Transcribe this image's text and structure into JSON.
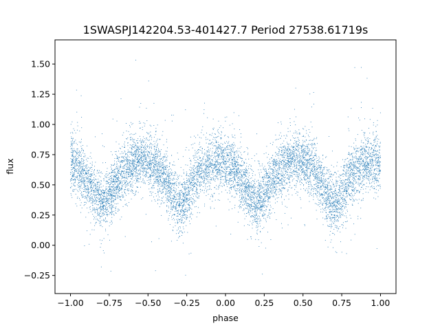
{
  "chart_data": {
    "type": "scatter",
    "title": "1SWASPJ142204.53-401427.7 Period 27538.61719s",
    "xlabel": "phase",
    "ylabel": "flux",
    "xlim": [
      -1.1,
      1.1
    ],
    "ylim": [
      -0.4,
      1.7
    ],
    "xticks": [
      -1.0,
      -0.75,
      -0.5,
      -0.25,
      0.0,
      0.25,
      0.5,
      0.75,
      1.0
    ],
    "xtick_labels": [
      "−1.00",
      "−0.75",
      "−0.50",
      "−0.25",
      "0.00",
      "0.25",
      "0.50",
      "0.75",
      "1.00"
    ],
    "yticks": [
      -0.25,
      0.0,
      0.25,
      0.5,
      0.75,
      1.0,
      1.25,
      1.5
    ],
    "ytick_labels": [
      "−0.25",
      "0.00",
      "0.25",
      "0.50",
      "0.75",
      "1.00",
      "1.25",
      "1.50"
    ],
    "grid": false,
    "marker_color": "#1f77b4",
    "series": [
      {
        "phase_range": [
          -1.0,
          1.0
        ],
        "profile_phase": [
          -1.0,
          -0.95,
          -0.9,
          -0.85,
          -0.8,
          -0.75,
          -0.7,
          -0.65,
          -0.6,
          -0.55,
          -0.5,
          -0.45,
          -0.4,
          -0.35,
          -0.3,
          -0.25,
          -0.2,
          -0.15,
          -0.1,
          -0.05,
          0.0,
          0.05,
          0.1,
          0.15,
          0.2,
          0.25,
          0.3,
          0.35,
          0.4,
          0.45,
          0.5,
          0.55,
          0.6,
          0.65,
          0.7,
          0.75,
          0.8,
          0.85,
          0.9,
          0.95,
          1.0
        ],
        "profile_flux": [
          0.68,
          0.65,
          0.55,
          0.45,
          0.33,
          0.42,
          0.53,
          0.62,
          0.68,
          0.72,
          0.7,
          0.65,
          0.57,
          0.45,
          0.32,
          0.42,
          0.55,
          0.63,
          0.68,
          0.7,
          0.68,
          0.65,
          0.55,
          0.45,
          0.33,
          0.42,
          0.53,
          0.62,
          0.68,
          0.72,
          0.7,
          0.65,
          0.57,
          0.45,
          0.32,
          0.42,
          0.55,
          0.63,
          0.68,
          0.7,
          0.68
        ],
        "flux_scatter_sd": 0.12
      }
    ]
  }
}
